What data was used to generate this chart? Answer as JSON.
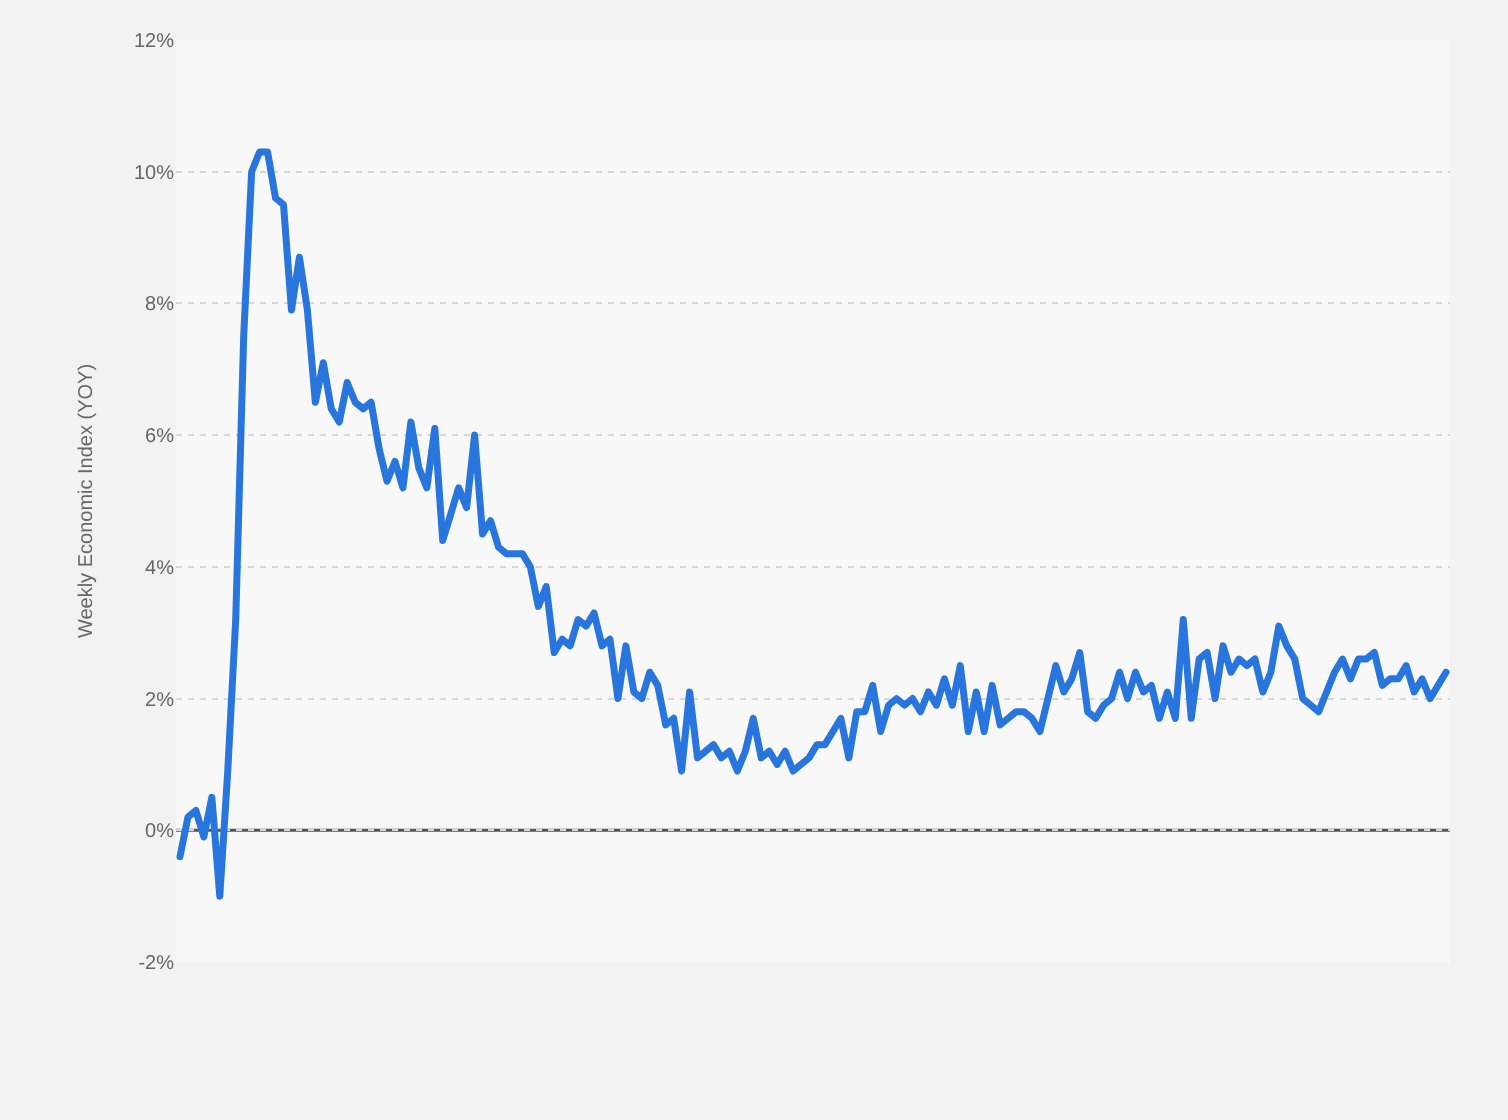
{
  "chart_data": {
    "type": "line",
    "ylabel": "Weekly Economic Index (YOY)",
    "categories": [
      null,
      null,
      null,
      null,
      null,
      null,
      null,
      null,
      null,
      null,
      null,
      null,
      null,
      null,
      null,
      null,
      null,
      null,
      null,
      null,
      null,
      null,
      null,
      null,
      null,
      null,
      null,
      null,
      null,
      null,
      null,
      null,
      null,
      null,
      null,
      null,
      null,
      null,
      null,
      null,
      null,
      null,
      null,
      null,
      null,
      null,
      null,
      null,
      null,
      null,
      null,
      null,
      null,
      null,
      null,
      null,
      null,
      null,
      null,
      null,
      null,
      null,
      null,
      null,
      null,
      null,
      null,
      null,
      null,
      null,
      null,
      null,
      null,
      null,
      null,
      null,
      null,
      null,
      null,
      null,
      null,
      null,
      null,
      null,
      null,
      null,
      null,
      null,
      null,
      null,
      null,
      null,
      null,
      null,
      null,
      null,
      null,
      null,
      null,
      null,
      null,
      null,
      null,
      null,
      null,
      null,
      null,
      null,
      null,
      null,
      null,
      null,
      null,
      null,
      null,
      null,
      null,
      null,
      null,
      null,
      null,
      null,
      null,
      null,
      null,
      null,
      null,
      null,
      null,
      null,
      null,
      null,
      null,
      null,
      null,
      null,
      null,
      null,
      null,
      null,
      null,
      null,
      null,
      null,
      null,
      null,
      null,
      null,
      null,
      null,
      null,
      null,
      null,
      null,
      null,
      null,
      null,
      null,
      null,
      null
    ],
    "series": [
      {
        "color": "#2876dd",
        "values": [
          -0.4,
          0.2,
          0.3,
          -0.1,
          0.5,
          -1.0,
          0.9,
          3.2,
          7.5,
          10.0,
          10.3,
          10.3,
          9.6,
          9.5,
          7.9,
          8.7,
          7.9,
          6.5,
          7.1,
          6.4,
          6.2,
          6.8,
          6.5,
          6.4,
          6.5,
          5.8,
          5.3,
          5.6,
          5.2,
          6.2,
          5.5,
          5.2,
          6.1,
          4.4,
          4.8,
          5.2,
          4.9,
          6.0,
          4.5,
          4.7,
          4.3,
          4.2,
          4.2,
          4.2,
          4.0,
          3.4,
          3.7,
          2.7,
          2.9,
          2.8,
          3.2,
          3.1,
          3.3,
          2.8,
          2.9,
          2.0,
          2.8,
          2.1,
          2.0,
          2.4,
          2.2,
          1.6,
          1.7,
          0.9,
          2.1,
          1.1,
          1.2,
          1.3,
          1.1,
          1.2,
          0.9,
          1.2,
          1.7,
          1.1,
          1.2,
          1.0,
          1.2,
          0.9,
          1.0,
          1.1,
          1.3,
          1.3,
          1.5,
          1.7,
          1.1,
          1.8,
          1.8,
          2.2,
          1.5,
          1.9,
          2.0,
          1.9,
          2.0,
          1.8,
          2.1,
          1.9,
          2.3,
          1.9,
          2.5,
          1.5,
          2.1,
          1.5,
          2.2,
          1.6,
          1.7,
          1.8,
          1.8,
          1.7,
          1.5,
          2.0,
          2.5,
          2.1,
          2.3,
          2.7,
          1.8,
          1.7,
          1.9,
          2.0,
          2.4,
          2.0,
          2.4,
          2.1,
          2.2,
          1.7,
          2.1,
          1.7,
          3.2,
          1.7,
          2.6,
          2.7,
          2.0,
          2.8,
          2.4,
          2.6,
          2.5,
          2.6,
          2.1,
          2.4,
          3.1,
          2.8,
          2.6,
          2.0,
          1.9,
          1.8,
          2.1,
          2.4,
          2.6,
          2.3,
          2.6,
          2.6,
          2.7,
          2.2,
          2.3,
          2.3,
          2.5,
          2.1,
          2.3,
          2.0,
          2.2,
          2.4
        ]
      }
    ],
    "ylim": [
      -2,
      12
    ],
    "yticks": [
      {
        "value": -2,
        "label": "-2%"
      },
      {
        "value": 0,
        "label": "0%"
      },
      {
        "value": 2,
        "label": "2%"
      },
      {
        "value": 4,
        "label": "4%"
      },
      {
        "value": 6,
        "label": "6%"
      },
      {
        "value": 8,
        "label": "8%"
      },
      {
        "value": 10,
        "label": "10%"
      },
      {
        "value": 12,
        "label": "12%"
      }
    ],
    "ref_lines": [
      {
        "axis": "y",
        "value": 0,
        "color": "#555555"
      }
    ],
    "grid": "y",
    "tick_labels": "y",
    "marker": "none",
    "line_style": "solid"
  }
}
